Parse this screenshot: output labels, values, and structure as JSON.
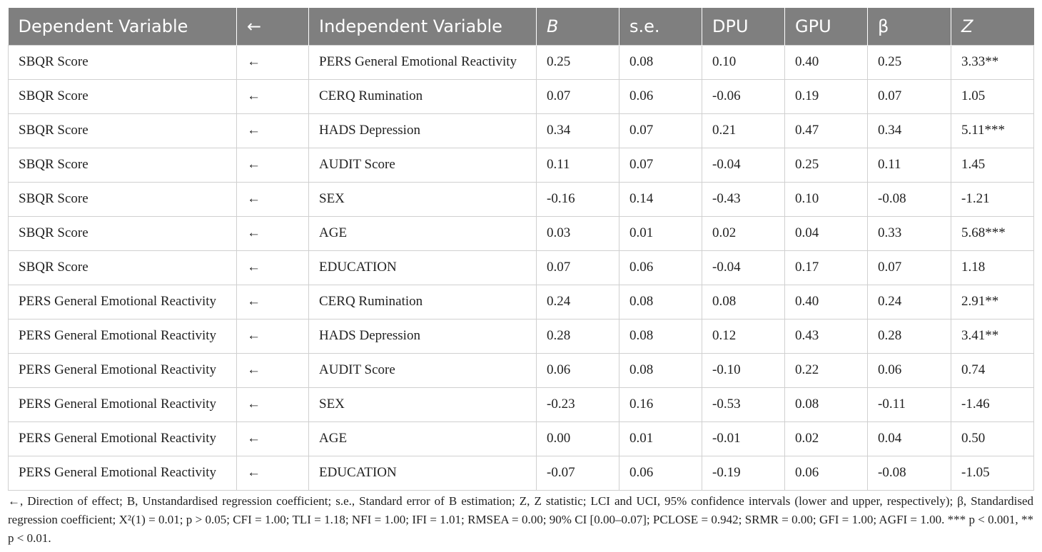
{
  "table": {
    "headers": [
      {
        "label": "Dependent Variable",
        "italic": false
      },
      {
        "label": "←",
        "italic": false
      },
      {
        "label": "Independent Variable",
        "italic": false
      },
      {
        "label": "B",
        "italic": true
      },
      {
        "label": "s.e.",
        "italic": false
      },
      {
        "label": "DPU",
        "italic": false
      },
      {
        "label": "GPU",
        "italic": false
      },
      {
        "label": "β",
        "italic": false
      },
      {
        "label": "Z",
        "italic": true
      }
    ],
    "rows": [
      [
        "SBQR Score",
        "←",
        "PERS General Emotional Reactivity",
        "0.25",
        "0.08",
        "0.10",
        "0.40",
        "0.25",
        "3.33**"
      ],
      [
        "SBQR Score",
        "←",
        "CERQ Rumination",
        "0.07",
        "0.06",
        "-0.06",
        "0.19",
        "0.07",
        "1.05"
      ],
      [
        "SBQR Score",
        "←",
        "HADS Depression",
        "0.34",
        "0.07",
        "0.21",
        "0.47",
        "0.34",
        "5.11***"
      ],
      [
        "SBQR Score",
        "←",
        "AUDIT Score",
        "0.11",
        "0.07",
        "-0.04",
        "0.25",
        "0.11",
        "1.45"
      ],
      [
        "SBQR Score",
        "←",
        "SEX",
        "-0.16",
        "0.14",
        "-0.43",
        "0.10",
        "-0.08",
        "-1.21"
      ],
      [
        "SBQR Score",
        "←",
        "AGE",
        "0.03",
        "0.01",
        "0.02",
        "0.04",
        "0.33",
        "5.68***"
      ],
      [
        "SBQR Score",
        "←",
        "EDUCATION",
        "0.07",
        "0.06",
        "-0.04",
        "0.17",
        "0.07",
        "1.18"
      ],
      [
        "PERS General Emotional Reactivity",
        "←",
        "CERQ Rumination",
        "0.24",
        "0.08",
        "0.08",
        "0.40",
        "0.24",
        "2.91**"
      ],
      [
        "PERS General Emotional Reactivity",
        "←",
        "HADS Depression",
        "0.28",
        "0.08",
        "0.12",
        "0.43",
        "0.28",
        "3.41**"
      ],
      [
        "PERS General Emotional Reactivity",
        "←",
        "AUDIT Score",
        "0.06",
        "0.08",
        "-0.10",
        "0.22",
        "0.06",
        "0.74"
      ],
      [
        "PERS General Emotional Reactivity",
        "←",
        "SEX",
        "-0.23",
        "0.16",
        "-0.53",
        "0.08",
        "-0.11",
        "-1.46"
      ],
      [
        "PERS General Emotional Reactivity",
        "←",
        "AGE",
        "0.00",
        "0.01",
        "-0.01",
        "0.02",
        "0.04",
        "0.50"
      ],
      [
        "PERS General Emotional Reactivity",
        "←",
        "EDUCATION",
        "-0.07",
        "0.06",
        "-0.19",
        "0.06",
        "-0.08",
        "-1.05"
      ]
    ]
  },
  "footnote": "←, Direction of effect; B, Unstandardised regression coefficient; s.e., Standard error of B estimation; Z, Z statistic; LCI and UCI, 95% confidence intervals (lower and upper, respectively); β, Standardised regression coefficient; X²(1) = 0.01; p > 0.05; CFI = 1.00; TLI = 1.18; NFI = 1.00; IFI = 1.01; RMSEA = 0.00; 90% CI [0.00–0.07]; PCLOSE = 0.942; SRMR = 0.00; GFI = 1.00; AGFI = 1.00. *** p < 0.001, ** p < 0.01.",
  "colors": {
    "header_background": "#7f7f7f",
    "header_text": "#ffffff",
    "grid_lines": "#d0d0d0"
  }
}
